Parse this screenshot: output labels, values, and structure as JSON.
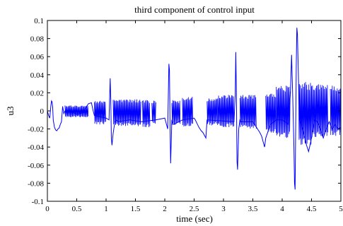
{
  "chart_data": {
    "type": "line",
    "title": "third component of control input",
    "xlabel": "time (sec)",
    "ylabel": "u3",
    "xlim": [
      0,
      5
    ],
    "ylim": [
      -0.1,
      0.1
    ],
    "grid": false,
    "line_color": "#0000ff",
    "xticks": [
      0,
      0.5,
      1,
      1.5,
      2,
      2.5,
      3,
      3.5,
      4,
      4.5,
      5
    ],
    "xtick_labels": [
      "0",
      "0.5",
      "1",
      "1.5",
      "2",
      "2.5",
      "3",
      "3.5",
      "4",
      "4.5",
      "5"
    ],
    "yticks": [
      -0.1,
      -0.08,
      -0.06,
      -0.04,
      -0.02,
      0,
      0.02,
      0.04,
      0.06,
      0.08,
      0.1
    ],
    "ytick_labels": [
      "-0.1",
      "-0.08",
      "-0.06",
      "-0.04",
      "-0.02",
      "0",
      "0.02",
      "0.04",
      "0.06",
      "0.08",
      "0.1"
    ],
    "series": [
      {
        "x": [
          0,
          0.02,
          0.04,
          0.06,
          0.07,
          0.08,
          0.09,
          0.1,
          0.12,
          0.14,
          0.16,
          0.18,
          0.2,
          0.22,
          0.24,
          0.26,
          0.28,
          0.3,
          0.4,
          0.5,
          0.6,
          0.7,
          0.75,
          0.78,
          0.8,
          1.0,
          1.05,
          1.07,
          1.08,
          1.09,
          1.1,
          1.12,
          1.15,
          1.18,
          1.2,
          1.4,
          1.6,
          1.85,
          2.0,
          2.05,
          2.07,
          2.08,
          2.09,
          2.1,
          2.12,
          2.15,
          2.3,
          2.5,
          2.52,
          2.55,
          2.58,
          2.6,
          2.62,
          2.65,
          2.7,
          2.72,
          3.18,
          3.2,
          3.21,
          3.22,
          3.23,
          3.24,
          3.26,
          3.28,
          3.3,
          3.5,
          3.56,
          3.58,
          3.6,
          3.62,
          3.65,
          3.7,
          3.72,
          3.8,
          3.9,
          4.0,
          4.05,
          4.1,
          4.14,
          4.16,
          4.18,
          4.2,
          4.21,
          4.22,
          4.23,
          4.24,
          4.25,
          4.26,
          4.28,
          4.3,
          4.35,
          4.4,
          4.45,
          4.5,
          4.55,
          4.6,
          4.65,
          4.7,
          4.75,
          4.8,
          4.85,
          4.9,
          4.95,
          5.0
        ],
        "y": [
          0.0,
          -0.005,
          -0.008,
          0.006,
          0.011,
          0.01,
          0.004,
          -0.01,
          -0.018,
          -0.021,
          -0.022,
          -0.02,
          -0.019,
          -0.015,
          -0.012,
          0.005,
          -0.003,
          0.0,
          0.0,
          -0.004,
          -0.002,
          0.008,
          0.009,
          0.0,
          -0.005,
          -0.008,
          -0.01,
          0.036,
          0.012,
          -0.03,
          -0.038,
          -0.025,
          -0.012,
          -0.01,
          -0.012,
          -0.01,
          -0.012,
          -0.01,
          -0.008,
          -0.02,
          0.052,
          0.045,
          -0.02,
          -0.058,
          -0.01,
          -0.015,
          -0.01,
          -0.008,
          -0.01,
          -0.014,
          -0.018,
          -0.02,
          -0.022,
          -0.024,
          -0.03,
          -0.01,
          -0.012,
          0.018,
          0.065,
          0.02,
          -0.055,
          -0.065,
          -0.02,
          -0.01,
          -0.012,
          -0.012,
          -0.018,
          -0.02,
          -0.022,
          -0.024,
          -0.028,
          -0.04,
          -0.03,
          -0.015,
          -0.01,
          -0.01,
          -0.012,
          -0.015,
          0.02,
          0.062,
          0.015,
          -0.04,
          -0.08,
          -0.087,
          -0.02,
          0.05,
          0.092,
          0.085,
          0.03,
          -0.01,
          -0.02,
          -0.035,
          -0.045,
          -0.03,
          -0.01,
          -0.012,
          -0.02,
          -0.03,
          -0.02,
          -0.012,
          -0.02,
          -0.015,
          -0.02,
          -0.018
        ]
      }
    ],
    "oscillation_bands": [
      {
        "x0": 0.3,
        "x1": 0.7,
        "lo": -0.007,
        "hi": 0.006
      },
      {
        "x0": 0.8,
        "x1": 1.0,
        "lo": -0.015,
        "hi": 0.012
      },
      {
        "x0": 1.12,
        "x1": 1.6,
        "lo": -0.017,
        "hi": 0.013
      },
      {
        "x0": 1.62,
        "x1": 1.75,
        "lo": -0.018,
        "hi": 0.012
      },
      {
        "x0": 1.78,
        "x1": 1.85,
        "lo": -0.015,
        "hi": 0.012
      },
      {
        "x0": 2.12,
        "x1": 2.27,
        "lo": -0.016,
        "hi": 0.012
      },
      {
        "x0": 2.3,
        "x1": 2.48,
        "lo": -0.018,
        "hi": 0.016
      },
      {
        "x0": 2.72,
        "x1": 2.9,
        "lo": -0.016,
        "hi": 0.014
      },
      {
        "x0": 2.9,
        "x1": 3.18,
        "lo": -0.018,
        "hi": 0.018
      },
      {
        "x0": 3.28,
        "x1": 3.56,
        "lo": -0.02,
        "hi": 0.018
      },
      {
        "x0": 3.72,
        "x1": 3.9,
        "lo": -0.025,
        "hi": 0.02
      },
      {
        "x0": 3.9,
        "x1": 4.14,
        "lo": -0.03,
        "hi": 0.028
      },
      {
        "x0": 4.28,
        "x1": 4.5,
        "lo": -0.038,
        "hi": 0.032
      },
      {
        "x0": 4.5,
        "x1": 4.78,
        "lo": -0.03,
        "hi": 0.03
      },
      {
        "x0": 4.82,
        "x1": 5.0,
        "lo": -0.028,
        "hi": 0.028
      }
    ]
  }
}
